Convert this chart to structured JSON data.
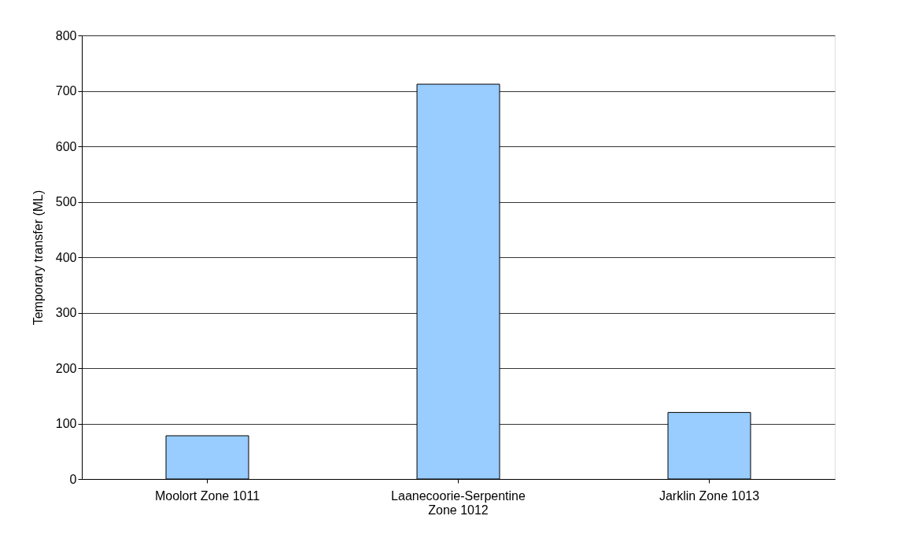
{
  "chart_data": {
    "type": "bar",
    "ylabel": "Temporary transfer (ML)",
    "categories": [
      "Moolort Zone 1011",
      "Laanecoorie-Serpentine Zone 1012",
      "Jarklin Zone 1013"
    ],
    "values": [
      78,
      712,
      120
    ],
    "color": "#99ccff",
    "ylim": [
      0,
      800
    ],
    "yticks": [
      0,
      100,
      200,
      300,
      400,
      500,
      600,
      700,
      800
    ],
    "grid": "y"
  }
}
